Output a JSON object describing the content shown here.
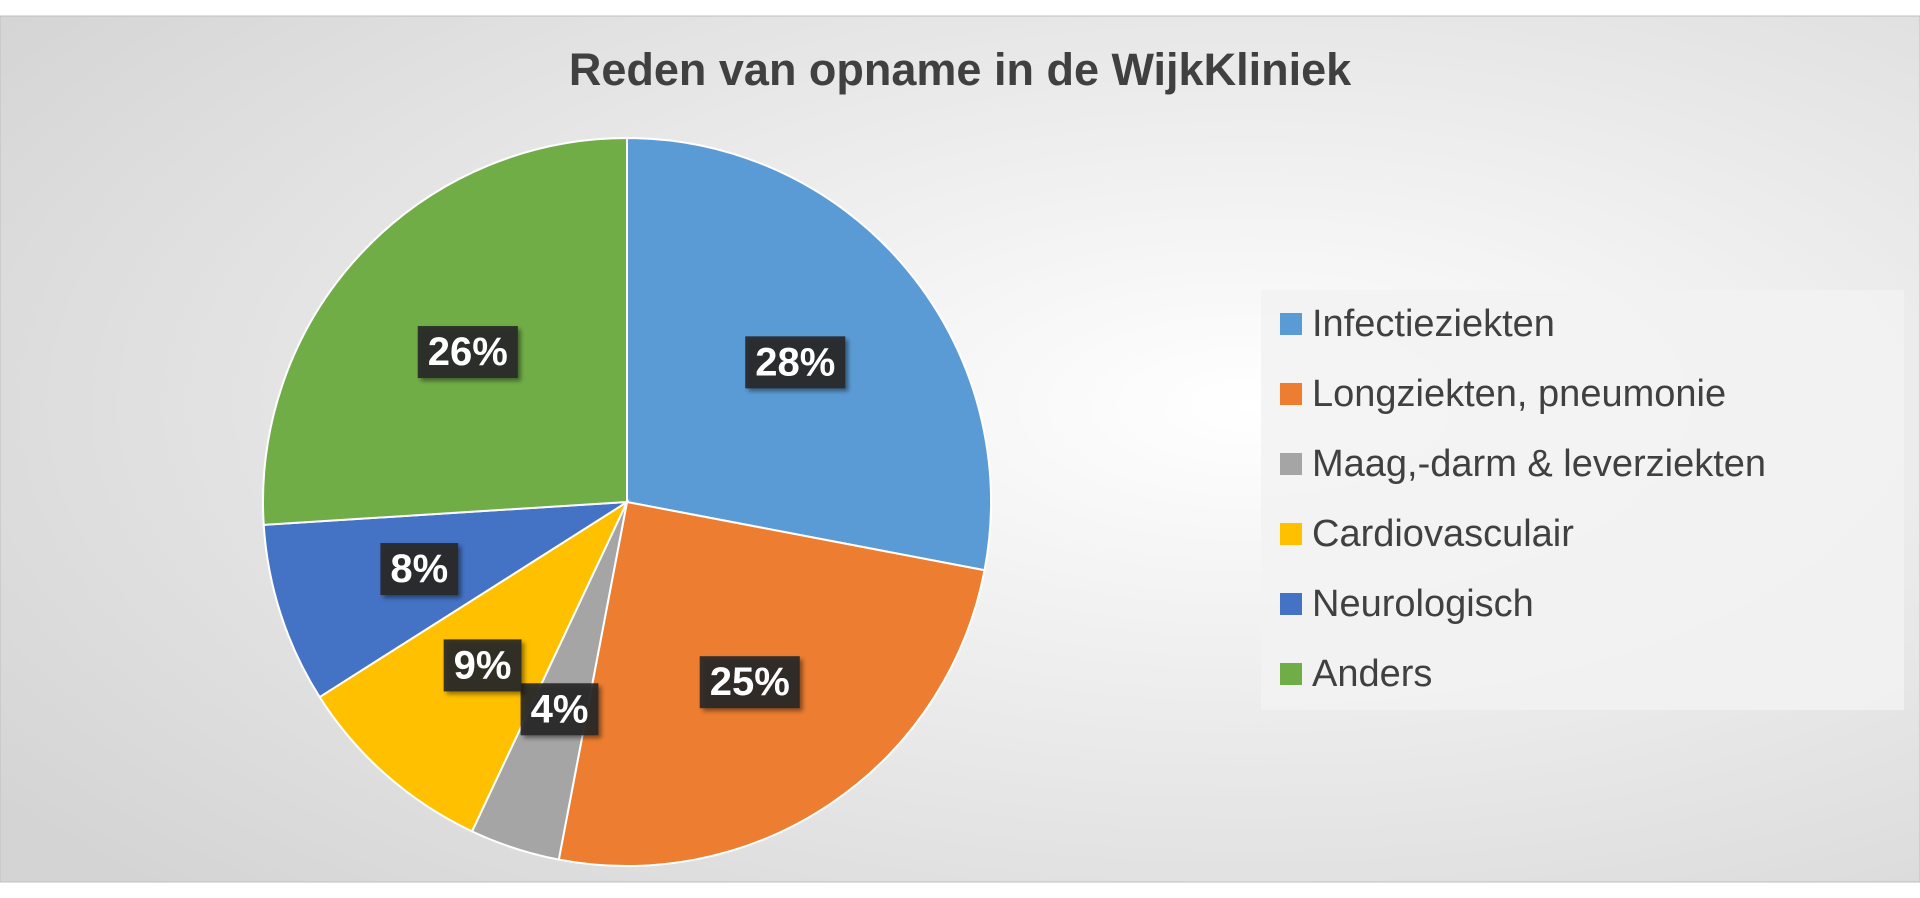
{
  "chart_data": {
    "type": "pie",
    "title": "Reden van opname in de WijkKliniek",
    "categories": [
      "Infectieziekten",
      "Longziekten, pneumonie",
      "Maag,-darm & leverziekten",
      "Cardiovasculair",
      "Neurologisch",
      "Anders"
    ],
    "values": [
      28,
      25,
      4,
      9,
      8,
      26
    ],
    "value_labels": [
      "28%",
      "25%",
      "4%",
      "9%",
      "8%",
      "26%"
    ],
    "colors": [
      "#5b9bd5",
      "#ed7d31",
      "#a5a5a5",
      "#ffc000",
      "#4472c4",
      "#70ad47"
    ],
    "legend": "right"
  }
}
